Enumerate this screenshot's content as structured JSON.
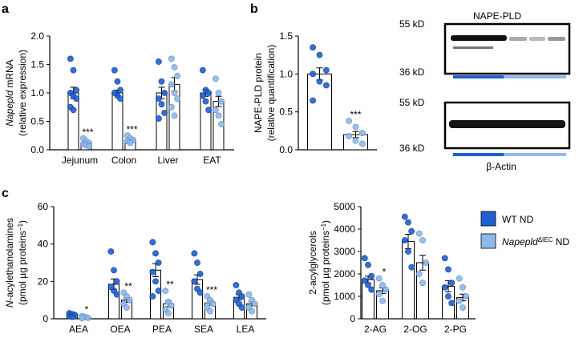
{
  "panel_labels": [
    "a",
    "b",
    "c"
  ],
  "blot": {
    "title": "NAPE-PLD",
    "loading": "β-Actin",
    "markers": [
      "55 kD",
      "36 kD",
      "55 kD",
      "36 kD"
    ]
  },
  "chart_data": [
    {
      "type": "bar",
      "y_label": [
        [
          {
            "text": "Napepld",
            "style": "italic"
          },
          {
            "text": " mRNA"
          }
        ],
        [
          {
            "text": "(relative expression)"
          }
        ]
      ],
      "categories": [
        "Jejunum",
        "Colon",
        "Liver",
        "EAT"
      ],
      "ylim": [
        0,
        2
      ],
      "yticks": [
        {
          "value": 0,
          "label": "0.0"
        },
        0.5,
        {
          "value": 1,
          "label": "1.0"
        },
        1.5,
        {
          "value": 2,
          "label": "2.0"
        }
      ],
      "annotations": [
        "***",
        "***",
        null,
        null
      ],
      "series": [
        {
          "color": "#1f5fd0",
          "values": [
            1.0,
            1.0,
            1.0,
            1.0
          ],
          "errors": [
            0.1,
            0.05,
            0.1,
            0.06
          ],
          "points": [
            [
              1.6,
              1.4,
              1.05,
              1.0,
              0.95,
              0.9,
              0.75,
              0.7
            ],
            [
              1.4,
              1.2,
              1.05,
              1.0,
              0.95,
              0.9
            ],
            [
              1.55,
              1.2,
              1.0,
              0.9,
              0.8,
              0.65,
              0.55
            ],
            [
              1.4,
              1.05,
              1.0,
              0.95,
              0.85,
              0.7
            ]
          ]
        },
        {
          "color": "#8fb8ea",
          "values": [
            0.12,
            0.17,
            1.15,
            0.85
          ],
          "errors": [
            0.02,
            0.02,
            0.12,
            0.09
          ],
          "points": [
            [
              0.2,
              0.15,
              0.12,
              0.1,
              0.08,
              0.06
            ],
            [
              0.25,
              0.2,
              0.17,
              0.15,
              0.12
            ],
            [
              1.6,
              1.45,
              1.3,
              1.15,
              1.0,
              0.9,
              0.75,
              0.6
            ],
            [
              1.25,
              1.0,
              0.85,
              0.7,
              0.6,
              0.45
            ]
          ]
        }
      ]
    },
    {
      "type": "bar",
      "y_label": [
        [
          {
            "text": "NAPE-PLD protein"
          }
        ],
        [
          {
            "text": "(relative quantification)"
          }
        ]
      ],
      "ylim": [
        0,
        1.5
      ],
      "yticks": [
        {
          "value": 0,
          "label": "0.0"
        },
        0.5,
        {
          "value": 1,
          "label": "1.0"
        },
        1.5
      ],
      "annotations": [
        "***"
      ],
      "series": [
        {
          "color": "#1f5fd0",
          "values": [
            1.0
          ],
          "errors": [
            0.08
          ],
          "points": [
            [
              1.35,
              1.25,
              1.05,
              1.0,
              0.9,
              0.85,
              0.65
            ]
          ]
        },
        {
          "color": "#8fb8ea",
          "values": [
            0.2
          ],
          "errors": [
            0.04
          ],
          "points": [
            [
              0.38,
              0.3,
              0.22,
              0.18,
              0.12,
              0.08
            ]
          ]
        }
      ]
    },
    {
      "type": "bar",
      "y_label": [
        [
          {
            "text": "N",
            "style": "italic"
          },
          {
            "text": "-acylethanolamines"
          }
        ],
        [
          {
            "text": "(pmol µg proteins"
          },
          {
            "text": "−1",
            "style": "sup"
          },
          {
            "text": ")"
          }
        ]
      ],
      "categories": [
        "AEA",
        "OEA",
        "PEA",
        "SEA",
        "LEA"
      ],
      "ylim": [
        0,
        60
      ],
      "yticks": [
        0,
        20,
        40,
        60
      ],
      "annotations": [
        "*",
        "**",
        "**",
        "***",
        null
      ],
      "legend": [
        [
          {
            "text": "WT ND"
          }
        ],
        [
          {
            "text": "Napepld",
            "style": "italic"
          },
          {
            "text": "ΔIEC",
            "style": "sup"
          },
          {
            "text": " ND"
          }
        ]
      ],
      "series": [
        {
          "color": "#1f5fd0",
          "values": [
            2,
            18.5,
            26,
            21,
            11.5
          ],
          "errors": [
            0.3,
            2.8,
            3.5,
            2.5,
            1.4
          ],
          "points": [
            [
              3,
              2.5,
              2,
              1.5,
              1
            ],
            [
              36,
              26,
              20,
              17,
              15,
              13
            ],
            [
              41,
              35,
              30,
              25,
              20,
              15,
              12
            ],
            [
              35,
              30,
              24,
              20,
              16,
              14
            ],
            [
              18,
              14,
              12,
              10,
              8,
              6
            ]
          ]
        },
        {
          "color": "#8fb8ea",
          "values": [
            0.7,
            10,
            8,
            8.5,
            8
          ],
          "errors": [
            0.2,
            1.2,
            1.5,
            1.2,
            1.1
          ],
          "points": [
            [
              1.5,
              1,
              0.5,
              0.3
            ],
            [
              14,
              12,
              10,
              8,
              6
            ],
            [
              15,
              9,
              7,
              5,
              3
            ],
            [
              12,
              10,
              8,
              6,
              4
            ],
            [
              13,
              10,
              8,
              6,
              4
            ]
          ]
        }
      ]
    },
    {
      "type": "bar",
      "y_label": [
        [
          {
            "text": "2-acylglycerols"
          }
        ],
        [
          {
            "text": "(pmol µg proteins"
          },
          {
            "text": "−1",
            "style": "sup"
          },
          {
            "text": ")"
          }
        ]
      ],
      "categories": [
        "2-AG",
        "2-OG",
        "2-PG"
      ],
      "ylim": [
        0,
        5000
      ],
      "yticks": [
        0,
        1000,
        2000,
        3000,
        4000,
        5000
      ],
      "annotations": [
        "*",
        null,
        null
      ],
      "series": [
        {
          "color": "#1f5fd0",
          "values": [
            1750,
            3450,
            1450
          ],
          "errors": [
            150,
            320,
            250
          ],
          "points": [
            [
              2700,
              2400,
              1900,
              1700,
              1500,
              1300
            ],
            [
              4550,
              4300,
              3900,
              3500,
              3000,
              2300
            ],
            [
              2700,
              2200,
              1600,
              1400,
              1000,
              700
            ]
          ]
        },
        {
          "color": "#8fb8ea",
          "values": [
            1250,
            2500,
            950
          ],
          "errors": [
            130,
            330,
            150
          ],
          "points": [
            [
              1800,
              1500,
              1300,
              1100,
              800
            ],
            [
              3800,
              3500,
              2500,
              2000,
              1600
            ],
            [
              1800,
              1400,
              1000,
              800,
              500
            ]
          ]
        }
      ]
    }
  ]
}
